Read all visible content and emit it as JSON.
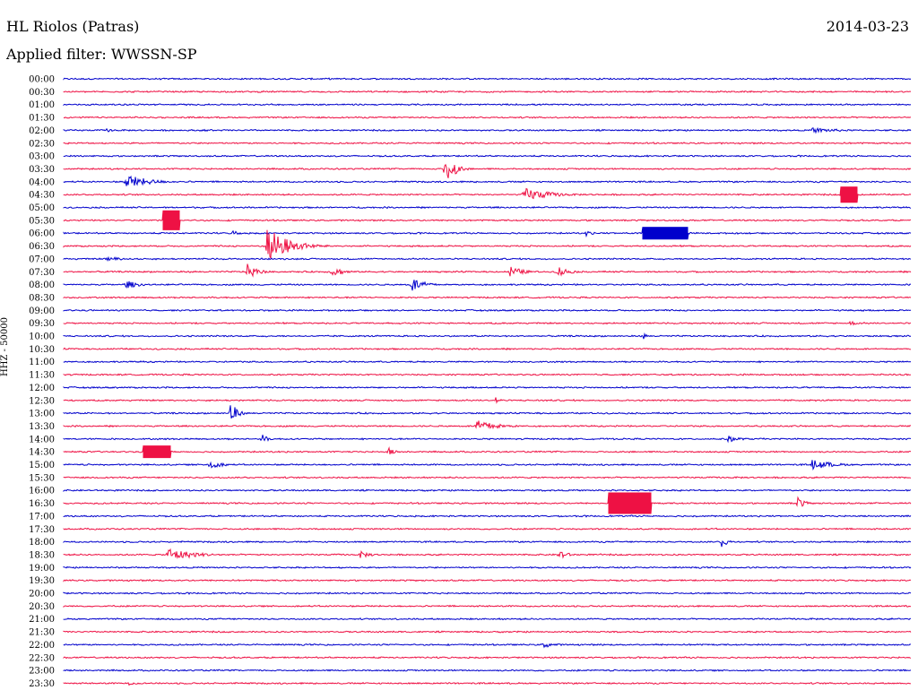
{
  "header": {
    "station": "HL Riolos (Patras)",
    "date": "2014-03-23",
    "filter": "Applied filter: WWSSN-SP"
  },
  "channel_label": "HHZ - 50000",
  "colors": {
    "odd": "#0000cc",
    "even": "#ee1144"
  },
  "chart_data": {
    "type": "seismogram-helicorder",
    "title": "HL Riolos (Patras)",
    "date": "2014-03-23",
    "filter": "WWSSN-SP",
    "channel": "HHZ",
    "scale": 50000,
    "row_minutes": 30,
    "row_labels": [
      "00:00",
      "00:30",
      "01:00",
      "01:30",
      "02:00",
      "02:30",
      "03:00",
      "03:30",
      "04:00",
      "04:30",
      "05:00",
      "05:30",
      "06:00",
      "06:30",
      "07:00",
      "07:30",
      "08:00",
      "08:30",
      "09:00",
      "09:30",
      "10:00",
      "10:30",
      "11:00",
      "11:30",
      "12:00",
      "12:30",
      "13:00",
      "13:30",
      "14:00",
      "14:30",
      "15:00",
      "15:30",
      "16:00",
      "16:30",
      "17:00",
      "17:30",
      "18:00",
      "18:30",
      "19:00",
      "19:30",
      "20:00",
      "20:30",
      "21:00",
      "21:30",
      "22:00",
      "22:30",
      "23:00",
      "23:30"
    ],
    "events": [
      {
        "row": "02:00",
        "minute": 1.5,
        "amp": 0.2,
        "dur": 0.6
      },
      {
        "row": "02:00",
        "minute": 5,
        "amp": 0.2,
        "dur": 0.5
      },
      {
        "row": "02:00",
        "minute": 26.5,
        "amp": 0.3,
        "dur": 1.5
      },
      {
        "row": "03:30",
        "minute": 13.5,
        "amp": 2.2,
        "dur": 0.4
      },
      {
        "row": "04:00",
        "minute": 2.2,
        "amp": 0.9,
        "dur": 1
      },
      {
        "row": "04:30",
        "minute": 16.3,
        "amp": 0.8,
        "dur": 1.2
      },
      {
        "row": "04:30",
        "minute": 27.5,
        "amp": 0.9,
        "dur": 0.6,
        "block": true
      },
      {
        "row": "05:30",
        "minute": 3.5,
        "amp": 1.1,
        "dur": 0.6,
        "block": true
      },
      {
        "row": "06:00",
        "minute": 20.5,
        "amp": 0.7,
        "dur": 1.6,
        "block": true
      },
      {
        "row": "06:00",
        "minute": 6,
        "amp": 0.4,
        "dur": 0.3
      },
      {
        "row": "06:00",
        "minute": 18.5,
        "amp": 0.4,
        "dur": 0.3
      },
      {
        "row": "06:30",
        "minute": 7.2,
        "amp": 2.2,
        "dur": 1
      },
      {
        "row": "07:00",
        "minute": 1.5,
        "amp": 0.3,
        "dur": 0.8
      },
      {
        "row": "07:30",
        "minute": 6.5,
        "amp": 0.9,
        "dur": 0.5
      },
      {
        "row": "07:30",
        "minute": 9.5,
        "amp": 0.6,
        "dur": 0.6
      },
      {
        "row": "07:30",
        "minute": 15.8,
        "amp": 0.7,
        "dur": 0.6
      },
      {
        "row": "07:30",
        "minute": 17.5,
        "amp": 0.7,
        "dur": 0.5
      },
      {
        "row": "08:00",
        "minute": 2.2,
        "amp": 0.5,
        "dur": 0.6
      },
      {
        "row": "08:00",
        "minute": 12.3,
        "amp": 0.9,
        "dur": 0.6
      },
      {
        "row": "09:30",
        "minute": 27.8,
        "amp": 0.3,
        "dur": 0.5
      },
      {
        "row": "10:00",
        "minute": 20.5,
        "amp": 0.5,
        "dur": 0.2
      },
      {
        "row": "12:30",
        "minute": 15.3,
        "amp": 0.5,
        "dur": 0.2
      },
      {
        "row": "13:00",
        "minute": 5.9,
        "amp": 1.5,
        "dur": 0.3
      },
      {
        "row": "13:30",
        "minute": 14.6,
        "amp": 0.7,
        "dur": 1
      },
      {
        "row": "14:00",
        "minute": 7,
        "amp": 0.6,
        "dur": 0.3
      },
      {
        "row": "14:00",
        "minute": 23.5,
        "amp": 0.4,
        "dur": 0.6
      },
      {
        "row": "14:30",
        "minute": 2.8,
        "amp": 0.7,
        "dur": 1,
        "block": true
      },
      {
        "row": "14:30",
        "minute": 11.5,
        "amp": 0.6,
        "dur": 0.3
      },
      {
        "row": "15:00",
        "minute": 5.1,
        "amp": 0.6,
        "dur": 0.6
      },
      {
        "row": "15:00",
        "minute": 26.5,
        "amp": 0.6,
        "dur": 1
      },
      {
        "row": "16:30",
        "minute": 19.3,
        "amp": 1.2,
        "dur": 1.5,
        "block": true
      },
      {
        "row": "16:30",
        "minute": 26,
        "amp": 0.8,
        "dur": 0.3
      },
      {
        "row": "18:00",
        "minute": 23.3,
        "amp": 0.7,
        "dur": 0.3
      },
      {
        "row": "18:30",
        "minute": 3.7,
        "amp": 0.8,
        "dur": 1.2
      },
      {
        "row": "18:30",
        "minute": 10.5,
        "amp": 0.4,
        "dur": 0.6
      },
      {
        "row": "18:30",
        "minute": 17.5,
        "amp": 0.7,
        "dur": 0.4
      },
      {
        "row": "22:00",
        "minute": 17,
        "amp": 0.4,
        "dur": 0.5
      },
      {
        "row": "23:30",
        "minute": 2.3,
        "amp": 0.2,
        "dur": 0.6
      }
    ]
  }
}
